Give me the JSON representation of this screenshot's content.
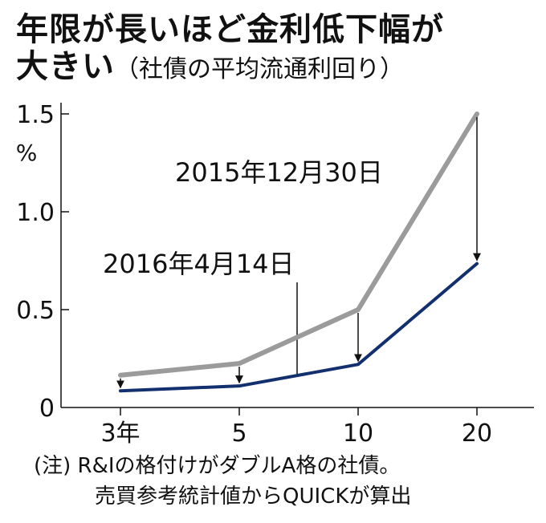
{
  "title": {
    "main_line1": "年限が長いほど金利低下幅が",
    "main_line2": "大きい",
    "subtitle": "（社債の平均流通利回り）"
  },
  "chart_data": {
    "type": "line",
    "categories": [
      "3年",
      "5",
      "10",
      "20"
    ],
    "series": [
      {
        "name": "2015年12月30日",
        "color": "#9b9b9b",
        "values": [
          0.165,
          0.225,
          0.5,
          1.5
        ]
      },
      {
        "name": "2016年4月14日",
        "color": "#13306e",
        "values": [
          0.085,
          0.11,
          0.22,
          0.735
        ]
      }
    ],
    "ylabel": "%",
    "ylim": [
      0,
      1.5
    ],
    "yticks": [
      "0",
      "0.5",
      "1.0",
      "1.5"
    ],
    "grid": false,
    "annotations": [
      "2015年12月30日",
      "2016年4月14日"
    ]
  },
  "note": {
    "line1": "(注) R&Iの格付けがダブルA格の社債。",
    "line2": "売買参考統計値からQUICKが算出"
  }
}
